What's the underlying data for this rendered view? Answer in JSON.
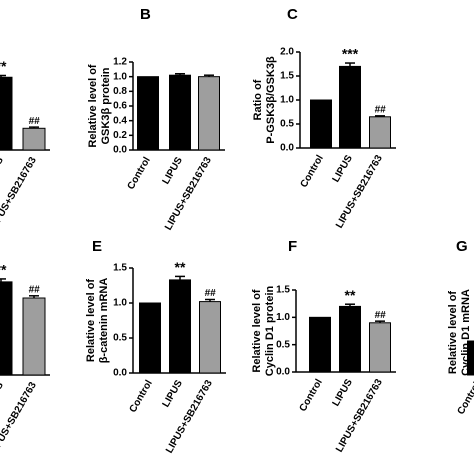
{
  "chart_data": [
    {
      "type": "bar",
      "categories": [
        "Control",
        "LIPUS",
        "LIPUS+SB216763"
      ],
      "values": [
        1.0,
        1.24,
        0.37
      ],
      "errors": [
        0,
        0.03,
        0.02
      ],
      "colors": [
        "#000000",
        "#000000",
        "#9e9e9e"
      ],
      "ylim": [
        0,
        1.5
      ],
      "annotations": [
        null,
        "**",
        "##"
      ]
    },
    {
      "type": "bar",
      "title": "B",
      "blot_labels": [
        "GSK3β",
        "GAPDH"
      ],
      "ylabel": [
        "Relative level of",
        "GSK3β protein"
      ],
      "categories": [
        "Control",
        "LIPUS",
        "LIPUS+SB216763"
      ],
      "values": [
        1.0,
        1.02,
        1.0
      ],
      "errors": [
        0,
        0.02,
        0.02
      ],
      "colors": [
        "#000000",
        "#000000",
        "#9e9e9e"
      ],
      "ylim": [
        0,
        1.2
      ],
      "yticks": [
        {
          "value": 0,
          "label": "0.0"
        },
        0.2,
        0.4,
        0.6,
        0.8,
        {
          "value": 1,
          "label": "1.0"
        },
        1.2
      ],
      "annotations": [
        null,
        null,
        null
      ]
    },
    {
      "type": "bar",
      "title": "C",
      "ylabel": [
        "Ratio of",
        "P-GSK3β/GSK3β"
      ],
      "categories": [
        "Control",
        "LIPUS",
        "LIPUS+SB216763"
      ],
      "values": [
        1.0,
        1.7,
        0.65
      ],
      "errors": [
        0,
        0.07,
        0.02
      ],
      "colors": [
        "#000000",
        "#000000",
        "#9e9e9e"
      ],
      "ylim": [
        0,
        2.0
      ],
      "yticks": [
        {
          "value": 0,
          "label": "0.0"
        },
        0.5,
        {
          "value": 1,
          "label": "1.0"
        },
        1.5,
        {
          "value": 2,
          "label": "2.0"
        }
      ],
      "annotations": [
        null,
        "***",
        "##"
      ]
    },
    {
      "type": "bar",
      "categories": [
        "Control",
        "LIPUS",
        "LIPUS+SB216763"
      ],
      "values": [
        1.0,
        1.27,
        1.05
      ],
      "errors": [
        0,
        0.04,
        0.03
      ],
      "colors": [
        "#000000",
        "#000000",
        "#9e9e9e"
      ],
      "ylim": [
        0,
        1.5
      ],
      "annotations": [
        null,
        "**",
        "##"
      ]
    },
    {
      "type": "bar",
      "title": "E",
      "ylabel": [
        "Relative level of",
        "β-catenin mRNA"
      ],
      "categories": [
        "Control",
        "LIPUS",
        "LIPUS+SB216763"
      ],
      "values": [
        1.0,
        1.33,
        1.02
      ],
      "errors": [
        0,
        0.05,
        0.03
      ],
      "colors": [
        "#000000",
        "#000000",
        "#9e9e9e"
      ],
      "ylim": [
        0,
        1.5
      ],
      "yticks": [
        {
          "value": 0,
          "label": "0.0"
        },
        0.5,
        {
          "value": 1,
          "label": "1.0"
        },
        1.5
      ],
      "annotations": [
        null,
        "**",
        "##"
      ]
    },
    {
      "type": "bar",
      "title": "F",
      "blot_labels": [
        "Cyclin D1",
        "GAPDH"
      ],
      "ylabel": [
        "Relative level of",
        "Cyclin D1 protein"
      ],
      "categories": [
        "Control",
        "LIPUS",
        "LIPUS+SB216763"
      ],
      "values": [
        1.0,
        1.2,
        0.9
      ],
      "errors": [
        0,
        0.04,
        0.03
      ],
      "colors": [
        "#000000",
        "#000000",
        "#9e9e9e"
      ],
      "ylim": [
        0,
        1.5
      ],
      "yticks": [
        {
          "value": 0,
          "label": "0.0"
        },
        0.5,
        {
          "value": 1,
          "label": "1.0"
        },
        1.5
      ],
      "annotations": [
        null,
        "**",
        "##"
      ]
    },
    {
      "type": "bar",
      "title": "G",
      "ylabel": [
        "Relative level of",
        "Cyclin D1 mRNA"
      ],
      "categories": [
        "Control"
      ],
      "values": [
        1.0
      ],
      "colors": [
        "#000000"
      ],
      "ylim": [
        0,
        2.5
      ]
    }
  ]
}
